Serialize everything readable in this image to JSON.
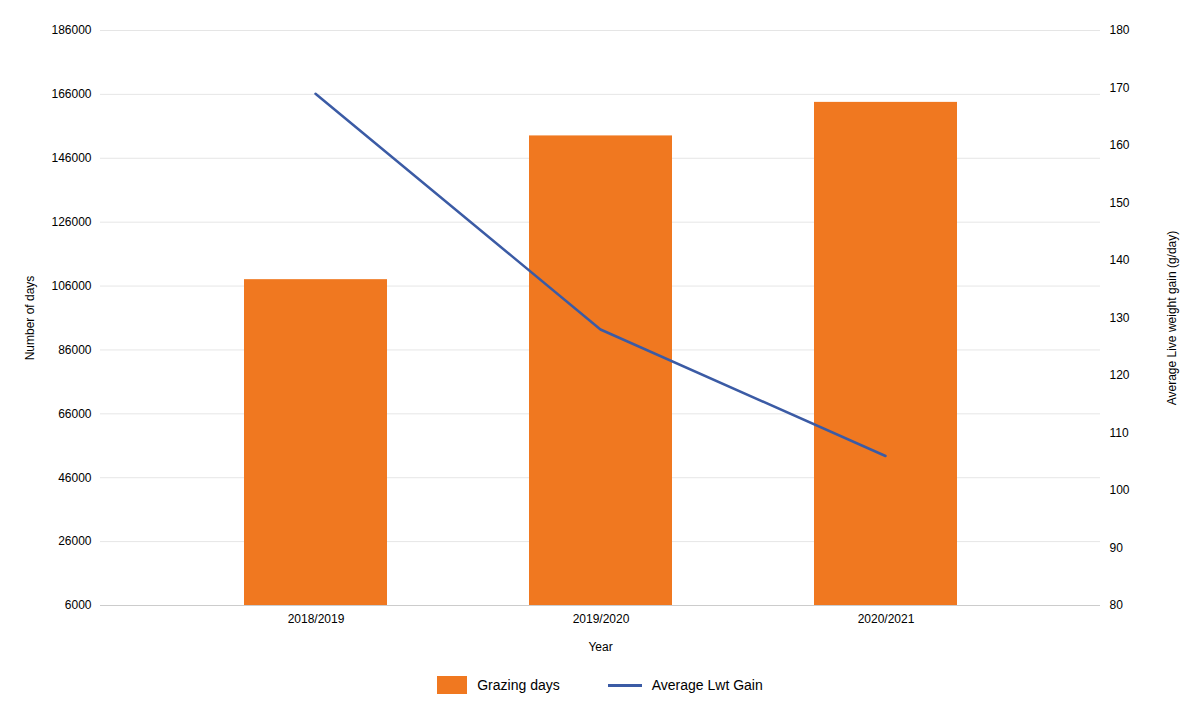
{
  "chart_data": {
    "type": "bar",
    "xlabel": "Year",
    "ylabel": "Number of days",
    "y2label": "Average Live weight gain (g/day)",
    "categories": [
      "2018/2019",
      "2019/2020",
      "2020/2021"
    ],
    "series": [
      {
        "name": "Grazing days",
        "type": "bar",
        "color": "#F07820",
        "values": [
          108000,
          153000,
          163500
        ]
      },
      {
        "name": "Average Lwt Gain",
        "type": "line",
        "color": "#3B5BA5",
        "axis": "y2",
        "values": [
          169,
          128,
          106
        ]
      }
    ],
    "ylim": [
      6000,
      186000
    ],
    "yticks": [
      6000,
      26000,
      46000,
      66000,
      86000,
      106000,
      126000,
      146000,
      166000,
      186000
    ],
    "y2lim": [
      80,
      180
    ],
    "y2ticks": [
      80,
      90,
      100,
      110,
      120,
      130,
      140,
      150,
      160,
      170,
      180
    ],
    "grid": true,
    "legend": "bottom"
  }
}
